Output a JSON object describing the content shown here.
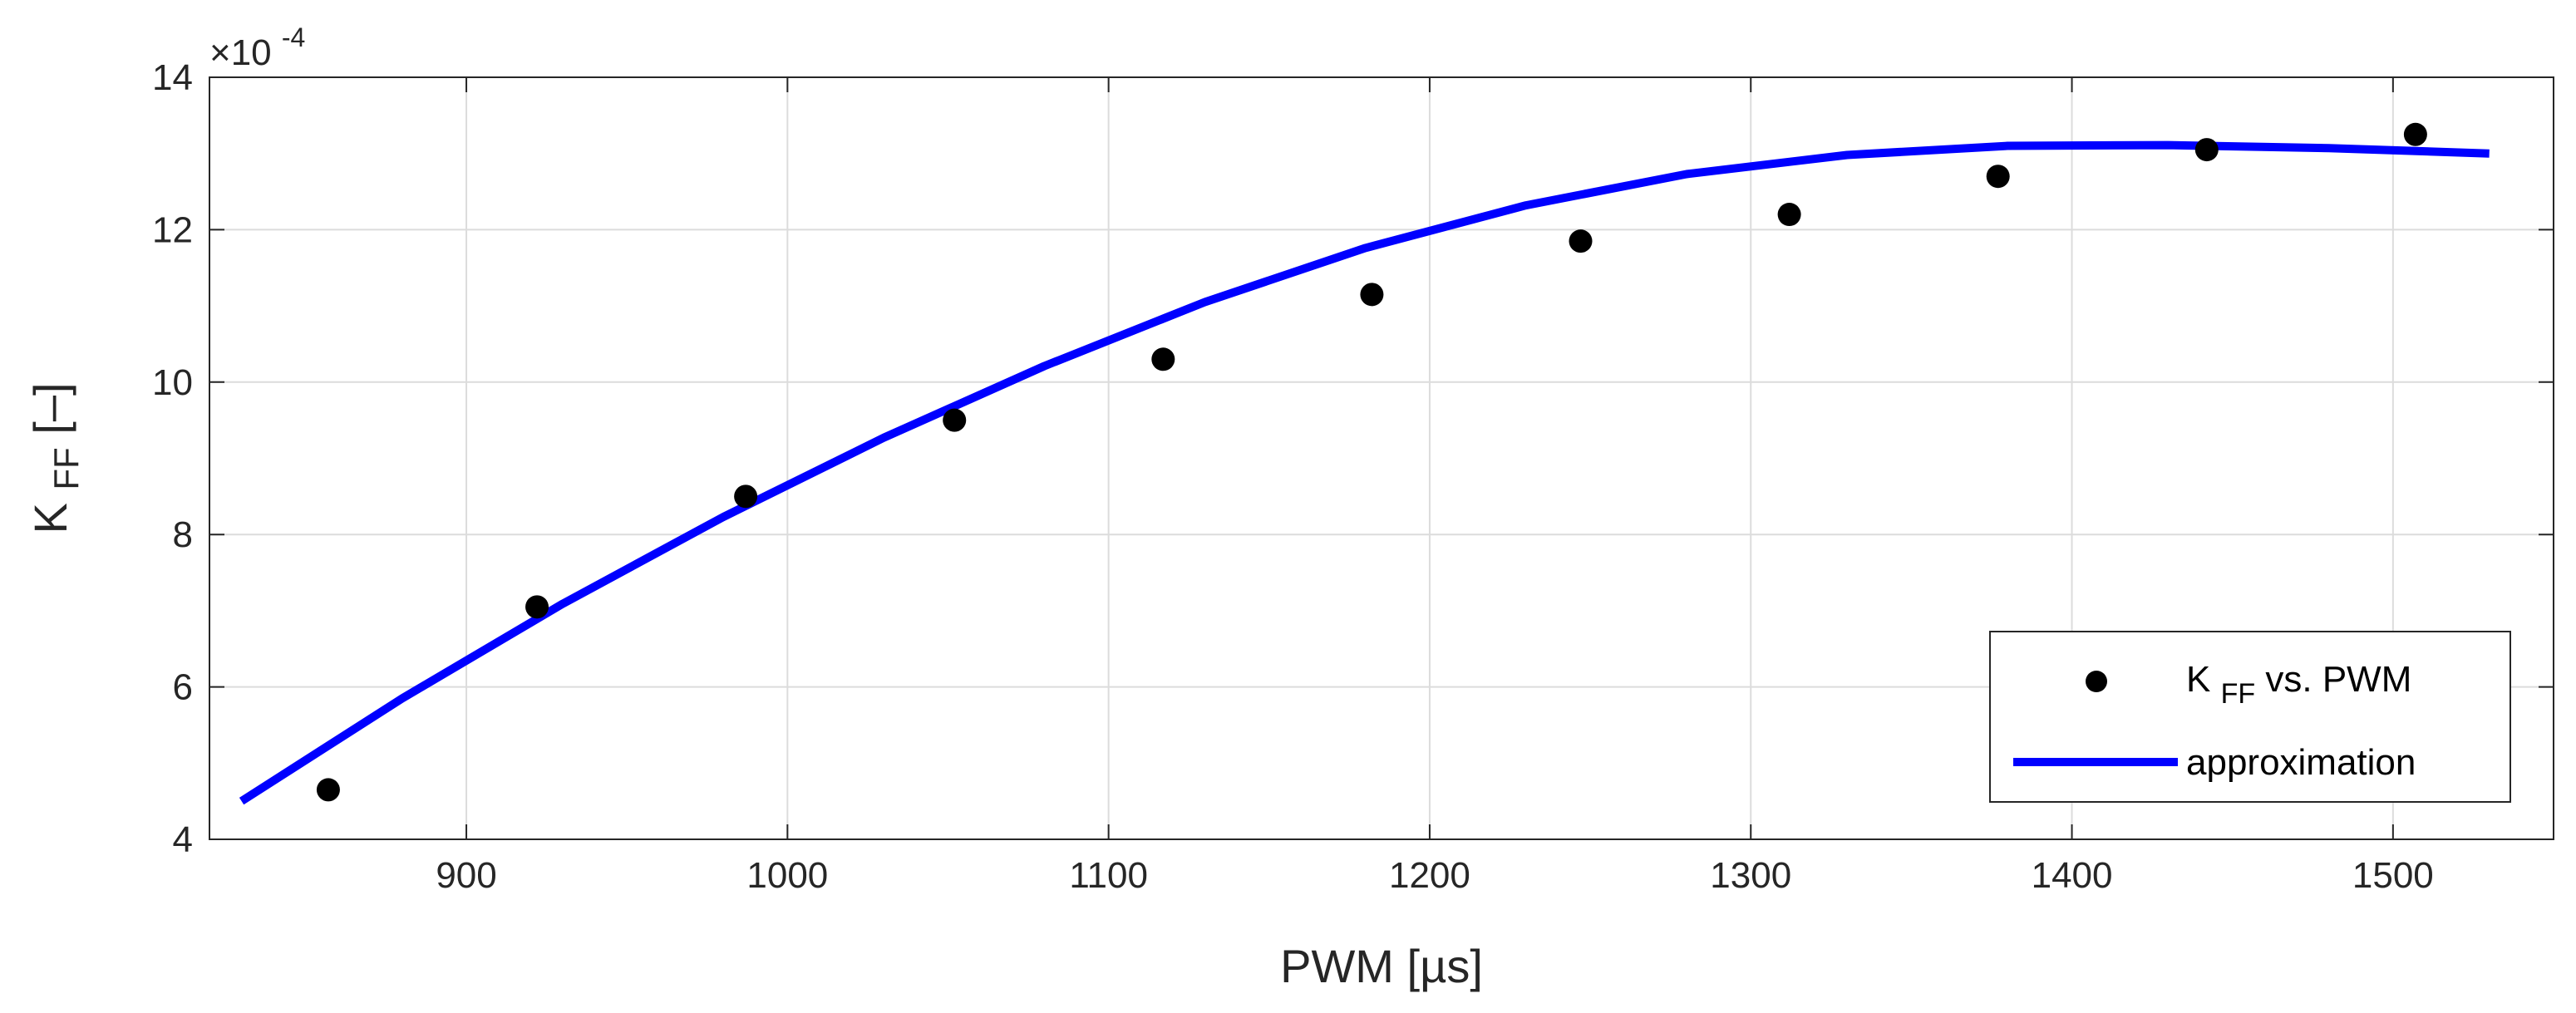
{
  "chart_data": {
    "type": "scatter",
    "xlabel": "PWM [µs]",
    "ylabel": {
      "main": "K",
      "sub": "FF",
      "unit": " [–]"
    },
    "y_multiplier": {
      "base": "×10",
      "exp": "-4"
    },
    "xlim": [
      820,
      1550
    ],
    "ylim": [
      4,
      14
    ],
    "x_ticks": [
      900,
      1000,
      1100,
      1200,
      1300,
      1400,
      1500
    ],
    "y_ticks": [
      4,
      6,
      8,
      10,
      12,
      14
    ],
    "grid": true,
    "legend_position": "bottom-right",
    "colors": {
      "points": "#000000",
      "line": "#0000ff",
      "grid": "#dcdcdc",
      "axis": "#262626"
    },
    "series": [
      {
        "name": {
          "main": "K",
          "sub": "FF",
          "rest": " vs. PWM"
        },
        "kind": "scatter",
        "x": [
          857,
          922,
          987,
          1052,
          1117,
          1182,
          1247,
          1312,
          1377,
          1442,
          1507
        ],
        "y": [
          4.65,
          7.05,
          8.5,
          9.5,
          10.3,
          11.15,
          11.85,
          12.2,
          12.7,
          13.05,
          13.25
        ]
      },
      {
        "name": "approximation",
        "kind": "line",
        "x": [
          830,
          880,
          930,
          980,
          1030,
          1080,
          1130,
          1180,
          1230,
          1280,
          1330,
          1380,
          1430,
          1480,
          1530
        ],
        "y": [
          4.5,
          5.85,
          7.09,
          8.23,
          9.27,
          10.21,
          11.05,
          11.76,
          12.32,
          12.73,
          12.98,
          13.1,
          13.11,
          13.07,
          13.0
        ]
      }
    ]
  }
}
